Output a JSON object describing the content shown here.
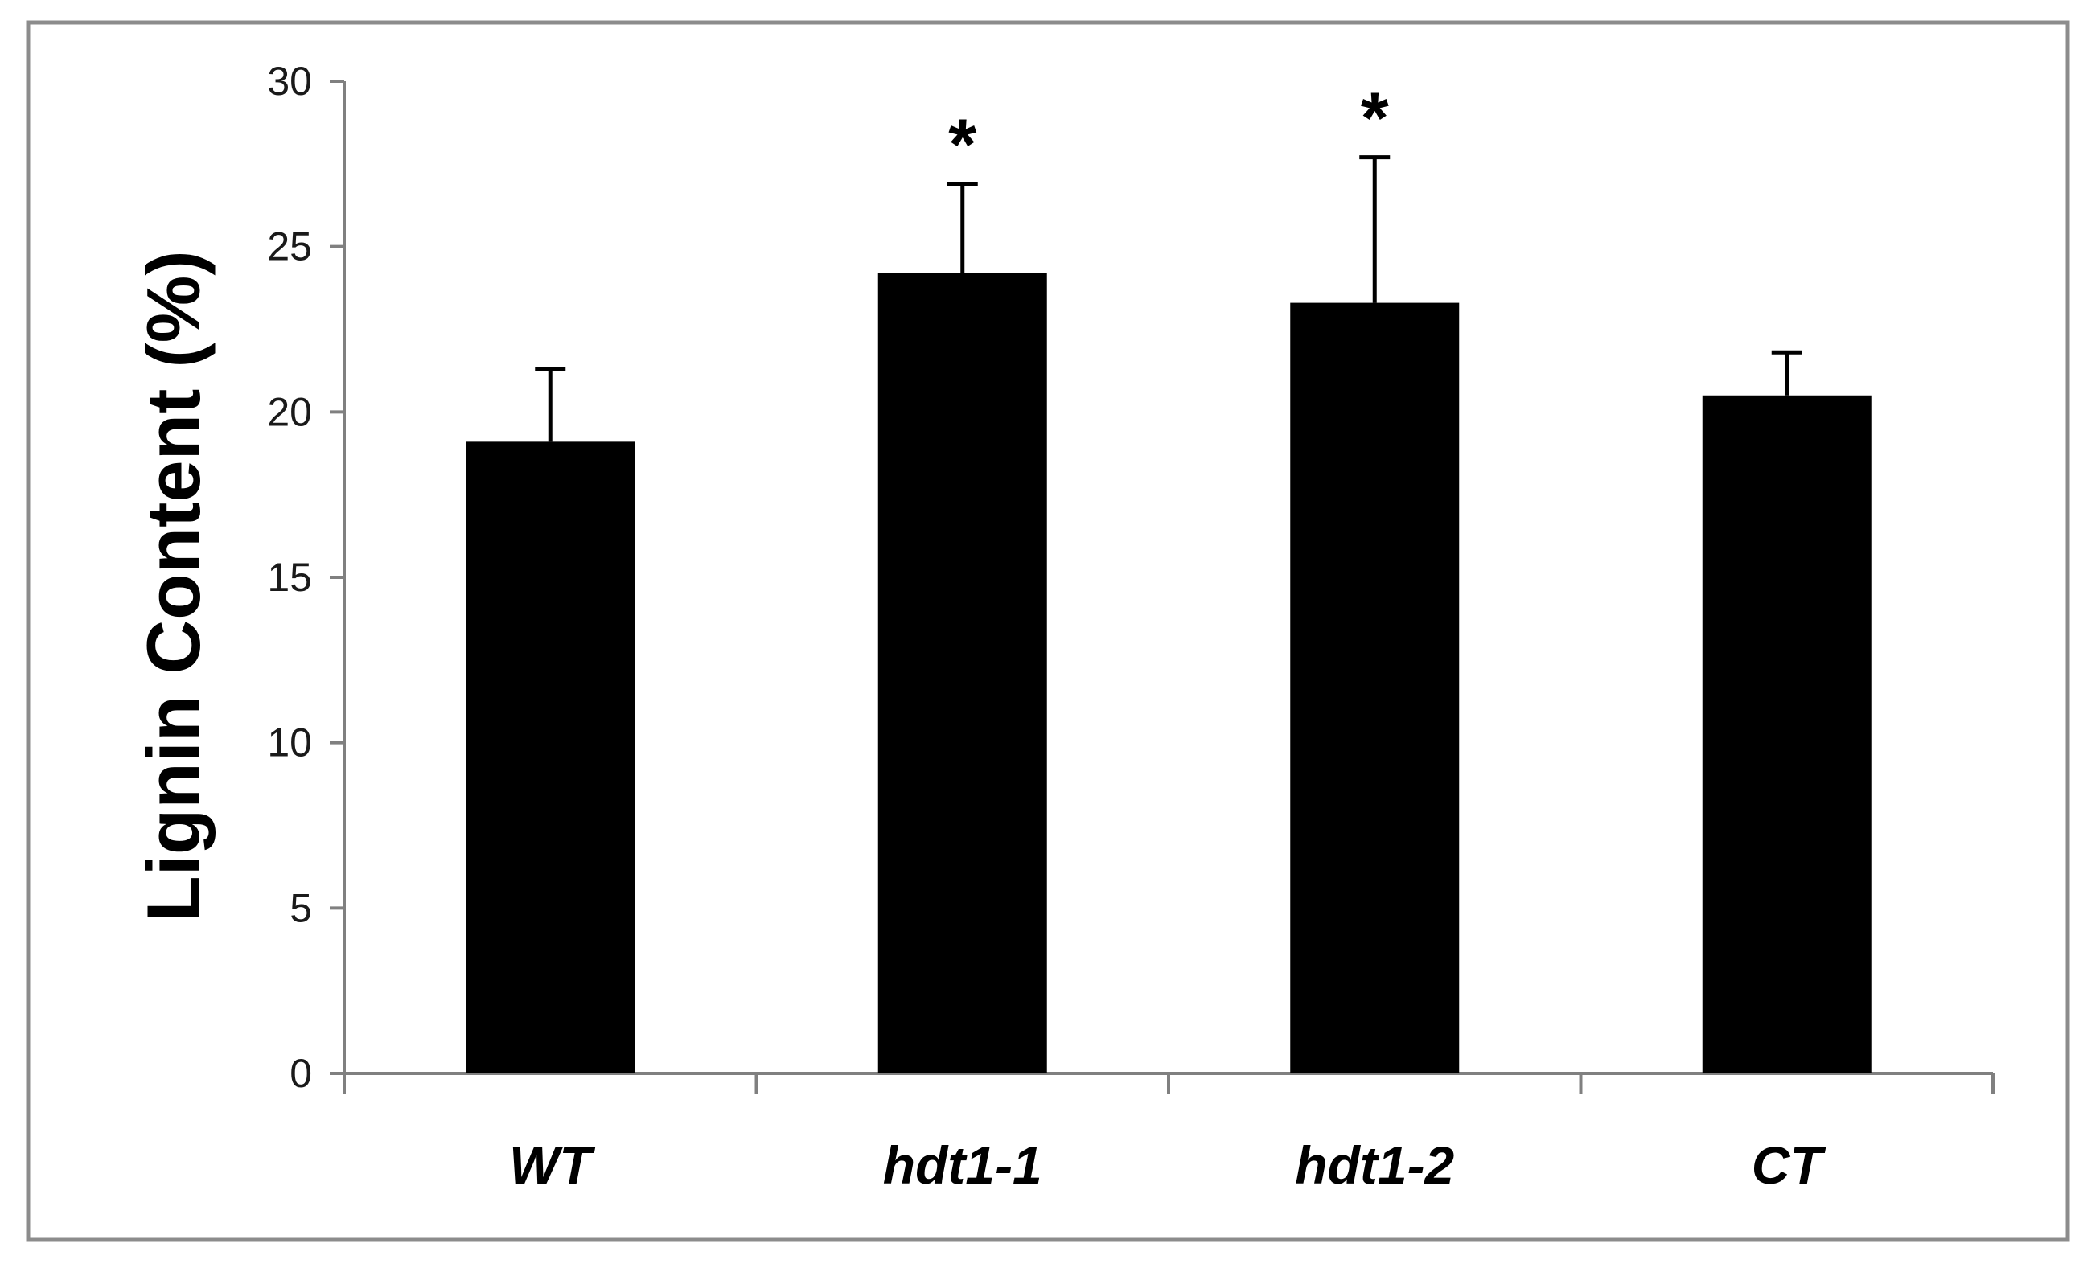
{
  "chart_data": {
    "type": "bar",
    "title": "",
    "xlabel": "",
    "ylabel": "Lignin Content (%)",
    "ylim": [
      0,
      30
    ],
    "yticks": [
      0,
      5,
      10,
      15,
      20,
      25,
      30
    ],
    "grid": false,
    "legend": "none",
    "categories": [
      "WT",
      "hdt1-1",
      "hdt1-2",
      "CT"
    ],
    "values": [
      19.1,
      24.2,
      23.3,
      20.5
    ],
    "errors": [
      2.2,
      2.7,
      4.4,
      1.3
    ],
    "annotations": [
      "",
      "*",
      "*",
      ""
    ]
  },
  "colors": {
    "bar": "#000000",
    "axis": "#808080",
    "frame": "#8c8c8c",
    "background": "#ffffff"
  }
}
